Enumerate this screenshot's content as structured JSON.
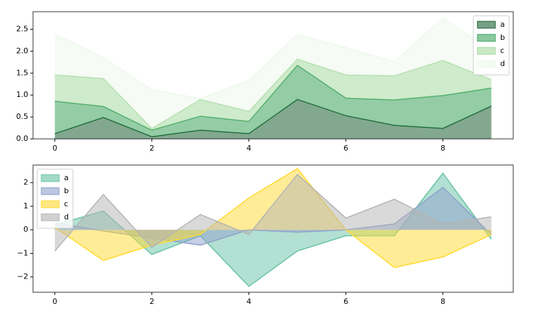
{
  "chart_data": [
    {
      "type": "area",
      "stacked": true,
      "legend": "upper right",
      "x": [
        0,
        1,
        2,
        3,
        4,
        5,
        6,
        7,
        8,
        9
      ],
      "series": [
        {
          "name": "a",
          "color": "#1b6033",
          "values": [
            0.12,
            0.49,
            0.05,
            0.2,
            0.12,
            0.9,
            0.53,
            0.31,
            0.24,
            0.75
          ]
        },
        {
          "name": "b",
          "color": "#3da35d",
          "values": [
            0.74,
            0.25,
            0.15,
            0.32,
            0.28,
            0.78,
            0.4,
            0.58,
            0.75,
            0.41
          ]
        },
        {
          "name": "c",
          "color": "#a6dba0",
          "values": [
            0.6,
            0.64,
            0.04,
            0.38,
            0.23,
            0.14,
            0.53,
            0.55,
            0.8,
            0.19
          ]
        },
        {
          "name": "d",
          "color": "#eef8ec",
          "values": [
            0.92,
            0.48,
            0.88,
            0.02,
            0.7,
            0.56,
            0.62,
            0.32,
            0.97,
            0.65
          ]
        }
      ],
      "xlim": [
        -0.45,
        9.45
      ],
      "xticks": [
        0,
        2,
        4,
        6,
        8
      ],
      "ylim": [
        0,
        2.9
      ],
      "yticks": [
        {
          "value": 0,
          "label": "0.0"
        },
        {
          "value": 0.5,
          "label": "0.5"
        },
        {
          "value": 1,
          "label": "1.0"
        },
        {
          "value": 1.5,
          "label": "1.5"
        },
        {
          "value": 2,
          "label": "2.0"
        },
        {
          "value": 2.5,
          "label": "2.5"
        }
      ]
    },
    {
      "type": "area",
      "stacked": false,
      "legend": "upper left",
      "x": [
        0,
        1,
        2,
        3,
        4,
        5,
        6,
        7,
        8,
        9
      ],
      "series": [
        {
          "name": "a",
          "color": "#66c2a5",
          "values": [
            0.2,
            0.8,
            -1.05,
            -0.25,
            -2.4,
            -0.9,
            -0.25,
            -0.25,
            2.4,
            -0.4
          ]
        },
        {
          "name": "b",
          "color": "#8da0cb",
          "values": [
            0.3,
            -0.05,
            -0.35,
            -0.65,
            0.0,
            -0.1,
            0.0,
            0.25,
            1.8,
            -0.2
          ]
        },
        {
          "name": "c",
          "color": "#ffd92f",
          "values": [
            0.1,
            -1.3,
            -0.65,
            -0.2,
            1.35,
            2.6,
            0.0,
            -1.6,
            -1.15,
            -0.2
          ]
        },
        {
          "name": "d",
          "color": "#b3b3b3",
          "values": [
            -0.9,
            1.5,
            -0.75,
            0.65,
            -0.2,
            2.35,
            0.5,
            1.3,
            0.25,
            0.55
          ]
        }
      ],
      "xlim": [
        -0.45,
        9.45
      ],
      "xticks": [
        0,
        2,
        4,
        6,
        8
      ],
      "ylim": [
        -2.65,
        2.75
      ],
      "yticks": [
        {
          "value": -2,
          "label": "−2"
        },
        {
          "value": -1,
          "label": "−1"
        },
        0,
        1,
        2
      ]
    }
  ]
}
